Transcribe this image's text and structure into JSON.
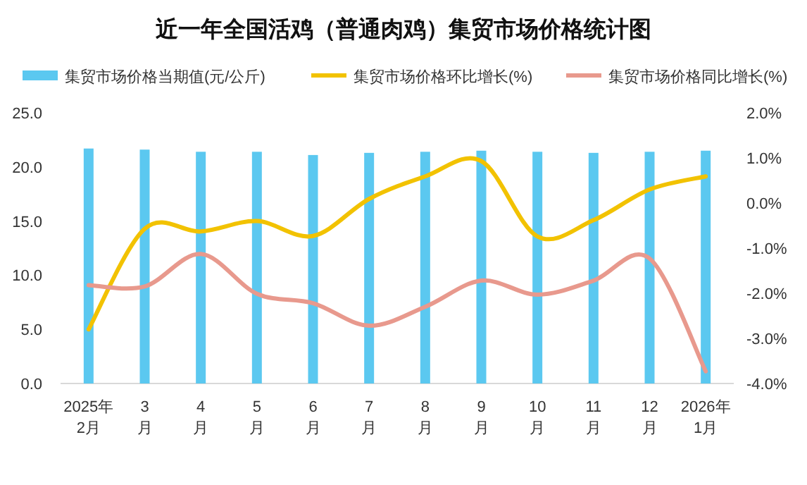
{
  "chart_data": {
    "type": "bar",
    "title": "近一年全国活鸡（普通肉鸡）集贸市场价格统计图",
    "categories": [
      "2025年\n2月",
      "3\n月",
      "4\n月",
      "5\n月",
      "6\n月",
      "7\n月",
      "8\n月",
      "9\n月",
      "10\n月",
      "11\n月",
      "12\n月",
      "2026年\n1月"
    ],
    "series": [
      {
        "name": "集贸市场价格当期值(元/公斤)",
        "color": "#5bc8f0",
        "values": [
          21.7,
          21.6,
          21.4,
          21.4,
          21.1,
          21.3,
          21.4,
          21.5,
          21.4,
          21.3,
          21.4,
          21.5
        ]
      },
      {
        "name": "集贸市场价格环比增长(%)",
        "type": "line",
        "axis": "y2",
        "color": "#f2c200",
        "values": [
          -2.8,
          -0.57,
          -0.63,
          -0.4,
          -0.73,
          0.09,
          0.59,
          0.93,
          -0.74,
          -0.38,
          0.3,
          0.59
        ]
      },
      {
        "name": "集贸市场价格同比增长(%)",
        "type": "line",
        "axis": "y2",
        "color": "#e8998d",
        "values": [
          -1.82,
          -1.85,
          -1.13,
          -2.01,
          -2.22,
          -2.72,
          -2.3,
          -1.72,
          -2.03,
          -1.72,
          -1.23,
          -3.73
        ]
      }
    ],
    "ylim": [
      0,
      25
    ],
    "yticks": [
      {
        "value": 0,
        "label": "0.0"
      },
      {
        "value": 5,
        "label": "5.0"
      },
      {
        "value": 10,
        "label": "10.0"
      },
      {
        "value": 15,
        "label": "15.0"
      },
      {
        "value": 20,
        "label": "20.0"
      },
      {
        "value": 25,
        "label": "25.0"
      }
    ],
    "y2lim": [
      -4,
      2
    ],
    "y2ticks": [
      {
        "value": -4,
        "label": "-4.0%"
      },
      {
        "value": -3,
        "label": "-3.0%"
      },
      {
        "value": -2,
        "label": "-2.0%"
      },
      {
        "value": -1,
        "label": "-1.0%"
      },
      {
        "value": 0,
        "label": "0.0%"
      },
      {
        "value": 1,
        "label": "1.0%"
      },
      {
        "value": 2,
        "label": "2.0%"
      }
    ],
    "legend": "top"
  }
}
